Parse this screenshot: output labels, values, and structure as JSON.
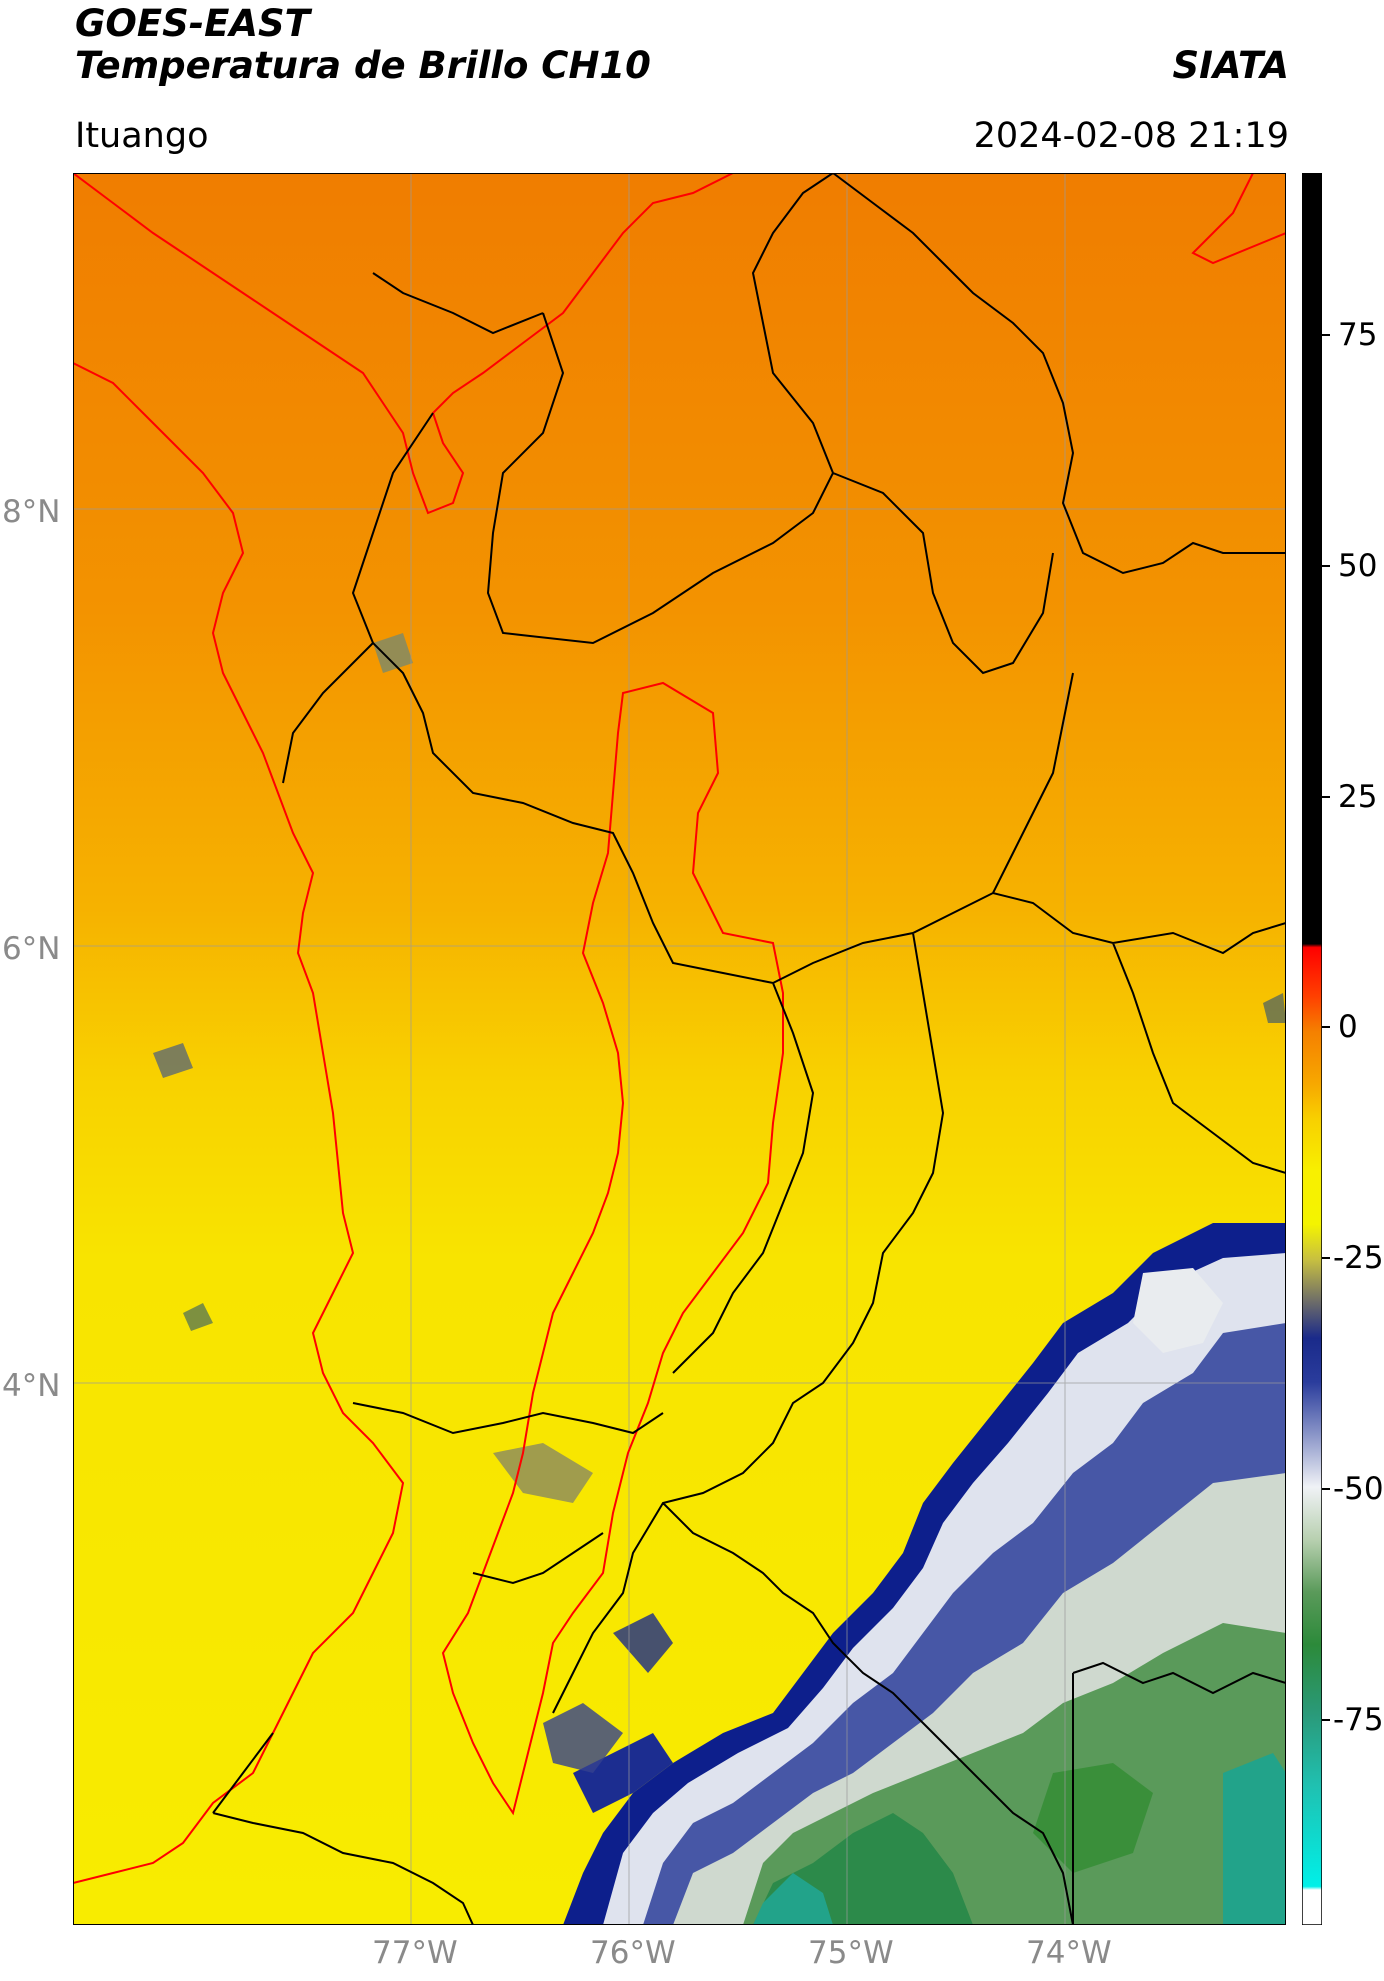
{
  "header": {
    "satellite": "GOES-EAST",
    "product": "Temperatura de Brillo CH10",
    "agency": "SIATA",
    "location": "Ituango",
    "timestamp": "2024-02-08 21:19"
  },
  "map": {
    "lat_labels": [
      "8°N",
      "6°N",
      "4°N"
    ],
    "lon_labels": [
      "77°W",
      "76°W",
      "75°W",
      "74°W"
    ],
    "colors": {
      "orange": "#f28a00",
      "yellow": "#f6ea00",
      "navy": "#0a1a80",
      "green": "#2e8b2e",
      "teal": "#22a38a",
      "red_boundary": "#ff0000",
      "black_boundary": "#000000"
    }
  },
  "colorbar": {
    "ticks": [
      "75",
      "50",
      "25",
      "0",
      "-25",
      "-50",
      "-75"
    ],
    "range": [
      -95,
      92
    ]
  }
}
